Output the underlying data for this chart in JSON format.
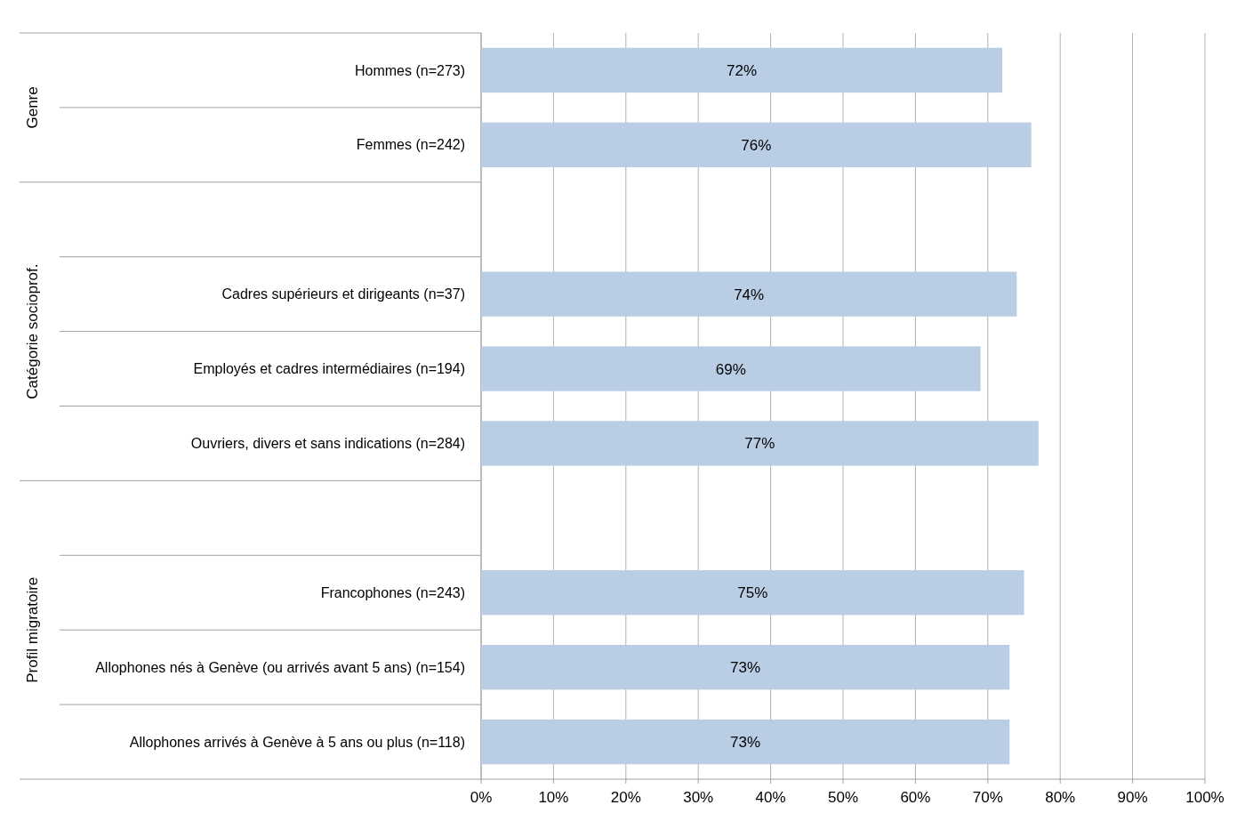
{
  "chart_data": {
    "type": "bar",
    "orientation": "horizontal",
    "categories": [
      "Hommes (n=273)",
      "Femmes (n=242)",
      null,
      "Cadres supérieurs et dirigeants (n=37)",
      "Employés et cadres intermédiaires (n=194)",
      "Ouvriers, divers et sans indications (n=284)",
      null,
      "Francophones (n=243)",
      "Allophones nés à Genève (ou arrivés avant 5 ans) (n=154)",
      "Allophones arrivés à Genève à 5 ans ou plus (n=118)"
    ],
    "values": [
      72,
      76,
      null,
      74,
      69,
      77,
      null,
      75,
      73,
      73
    ],
    "color": "#b9cde5",
    "value_labels": [
      "72%",
      "76%",
      null,
      "74%",
      "69%",
      "77%",
      null,
      "75%",
      "73%",
      "73%"
    ],
    "xlim": [
      0,
      100
    ],
    "xticks": [
      {
        "value": 0,
        "label": "0%"
      },
      {
        "value": 10,
        "label": "10%"
      },
      {
        "value": 20,
        "label": "20%"
      },
      {
        "value": 30,
        "label": "30%"
      },
      {
        "value": 40,
        "label": "40%"
      },
      {
        "value": 50,
        "label": "50%"
      },
      {
        "value": 60,
        "label": "60%"
      },
      {
        "value": 70,
        "label": "70%"
      },
      {
        "value": 80,
        "label": "80%"
      },
      {
        "value": 90,
        "label": "90%"
      },
      {
        "value": 100,
        "label": "100%"
      }
    ],
    "grid": "x",
    "annotations": [
      "Genre",
      "Catégorie socioprof.",
      "Profil migratoire"
    ]
  }
}
